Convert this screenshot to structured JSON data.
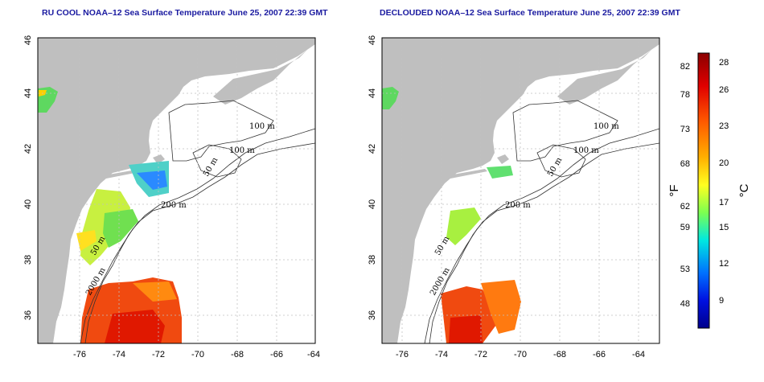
{
  "panels": [
    {
      "title": "RU COOL NOAA–12 Sea Surface Temperature June 25, 2007 22:39 GMT"
    },
    {
      "title": "DECLOUDED NOAA–12 Sea Surface Temperature June 25, 2007 22:39 GMT"
    }
  ],
  "map": {
    "lon_ticks": [
      "-76",
      "-74",
      "-72",
      "-70",
      "-68",
      "-66",
      "-64"
    ],
    "lat_ticks": [
      "36",
      "38",
      "40",
      "42",
      "44",
      "46"
    ],
    "lon_range": [
      -77.2,
      -63.0
    ],
    "lat_range": [
      35.0,
      46.0
    ],
    "contour_labels": [
      "100 m",
      "100 m",
      "50 m",
      "200 m",
      "50 m",
      "2000 m"
    ]
  },
  "colorbar": {
    "fahrenheit_label": "°F",
    "celsius_label": "°C",
    "fahrenheit_ticks": [
      "82",
      "78",
      "73",
      "68",
      "62",
      "59",
      "53",
      "48"
    ],
    "celsius_ticks": [
      "28",
      "26",
      "23",
      "20",
      "17",
      "15",
      "12",
      "9"
    ],
    "colors": [
      "#8b0000",
      "#ff2a00",
      "#ff8c00",
      "#ffe600",
      "#8cff3c",
      "#00e0ff",
      "#0050ff",
      "#00008b"
    ]
  }
}
